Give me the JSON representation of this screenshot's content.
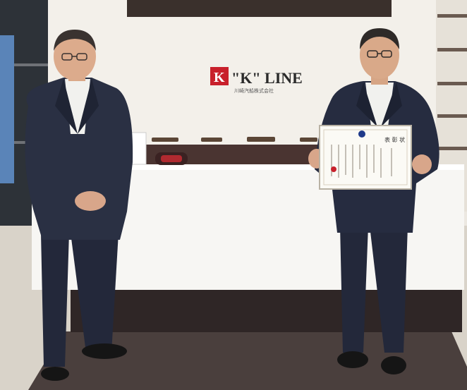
{
  "scene": {
    "logo": {
      "mark_letter": "K",
      "wordmark": "\"K\" LINE",
      "subline": "川崎汽船株式会社"
    },
    "certificate": {
      "heading": "表 彰 状"
    },
    "colors": {
      "wall": "#ece8e1",
      "reception_desk": "#f7f6f3",
      "desk_base": "#2f2626",
      "carpet": "#4a3f3d",
      "floor": "#d9d3c9",
      "logo_red": "#c8202b",
      "suit_dark": "#22283a"
    }
  }
}
